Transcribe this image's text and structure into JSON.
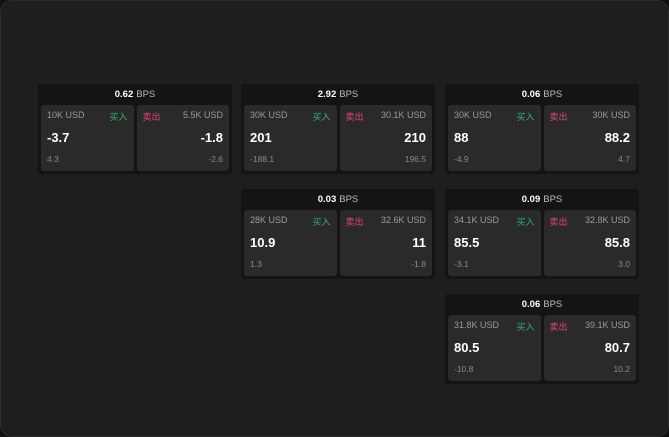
{
  "unit": "BPS",
  "buy_label": "买入",
  "sell_label": "卖出",
  "colors": {
    "buy": "#2fb36b",
    "sell": "#e0457a",
    "background": "#1e1e1e",
    "panel": "#141414",
    "card": "#2a2a2a"
  },
  "panels": [
    {
      "bps": "0.62",
      "buy": {
        "size": "10K USD",
        "price": "-3.7",
        "sub": "4.3"
      },
      "sell": {
        "size": "5.5K USD",
        "price": "-1.8",
        "sub": "-2.6"
      }
    },
    {
      "bps": "2.92",
      "buy": {
        "size": "30K USD",
        "price": "201",
        "sub": "-188.1"
      },
      "sell": {
        "size": "30.1K USD",
        "price": "210",
        "sub": "196.5"
      }
    },
    {
      "bps": "0.06",
      "buy": {
        "size": "30K USD",
        "price": "88",
        "sub": "-4.9"
      },
      "sell": {
        "size": "30K USD",
        "price": "88.2",
        "sub": "4.7"
      }
    },
    {
      "bps": "0.03",
      "buy": {
        "size": "28K USD",
        "price": "10.9",
        "sub": "1.3"
      },
      "sell": {
        "size": "32.6K USD",
        "price": "11",
        "sub": "-1.8"
      }
    },
    {
      "bps": "0.09",
      "buy": {
        "size": "34.1K USD",
        "price": "85.5",
        "sub": "-3.1"
      },
      "sell": {
        "size": "32.8K USD",
        "price": "85.8",
        "sub": "3.0"
      }
    },
    {
      "bps": "0.06",
      "buy": {
        "size": "31.8K USD",
        "price": "80.5",
        "sub": "-10.8"
      },
      "sell": {
        "size": "39.1K USD",
        "price": "80.7",
        "sub": "10.2"
      }
    }
  ]
}
